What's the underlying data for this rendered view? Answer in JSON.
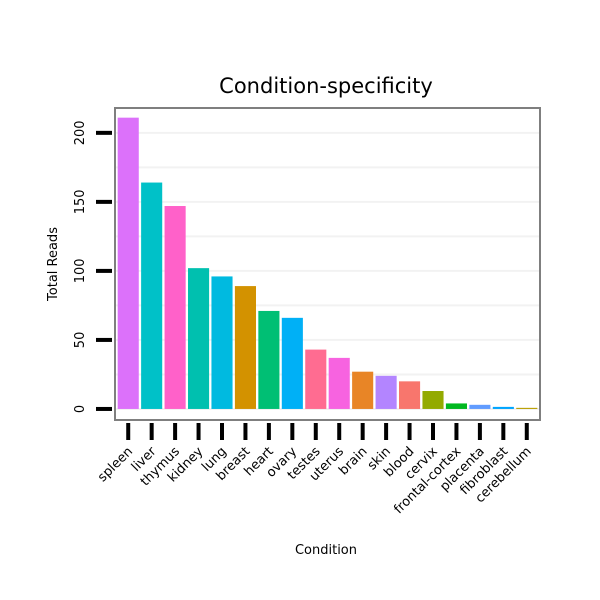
{
  "chart_data": {
    "type": "bar",
    "title": "Condition-specificity",
    "xlabel": "Condition",
    "ylabel": "Total Reads",
    "categories": [
      "spleen",
      "liver",
      "thymus",
      "kidney",
      "lung",
      "breast",
      "heart",
      "ovary",
      "testes",
      "uterus",
      "brain",
      "skin",
      "blood",
      "cervix",
      "frontal-cortex",
      "placenta",
      "fibroblast",
      "cerebellum"
    ],
    "values": [
      211,
      164,
      147,
      102,
      96,
      89,
      71,
      66,
      43,
      37,
      27,
      24,
      20,
      13,
      4,
      3,
      1.5,
      0.8
    ],
    "colors": [
      "#DC71FA",
      "#00C1C8",
      "#FF61C9",
      "#00C0AF",
      "#00BAE0",
      "#D39200",
      "#00BF74",
      "#00B0F6",
      "#FF6C91",
      "#F763E0",
      "#E88526",
      "#B385FF",
      "#F8766D",
      "#93AA00",
      "#00B81F",
      "#619CFF",
      "#00A5FF",
      "#BA9E00"
    ],
    "yticks": [
      0,
      50,
      100,
      150,
      200
    ],
    "ylim": [
      -8,
      218
    ],
    "grid": true
  }
}
